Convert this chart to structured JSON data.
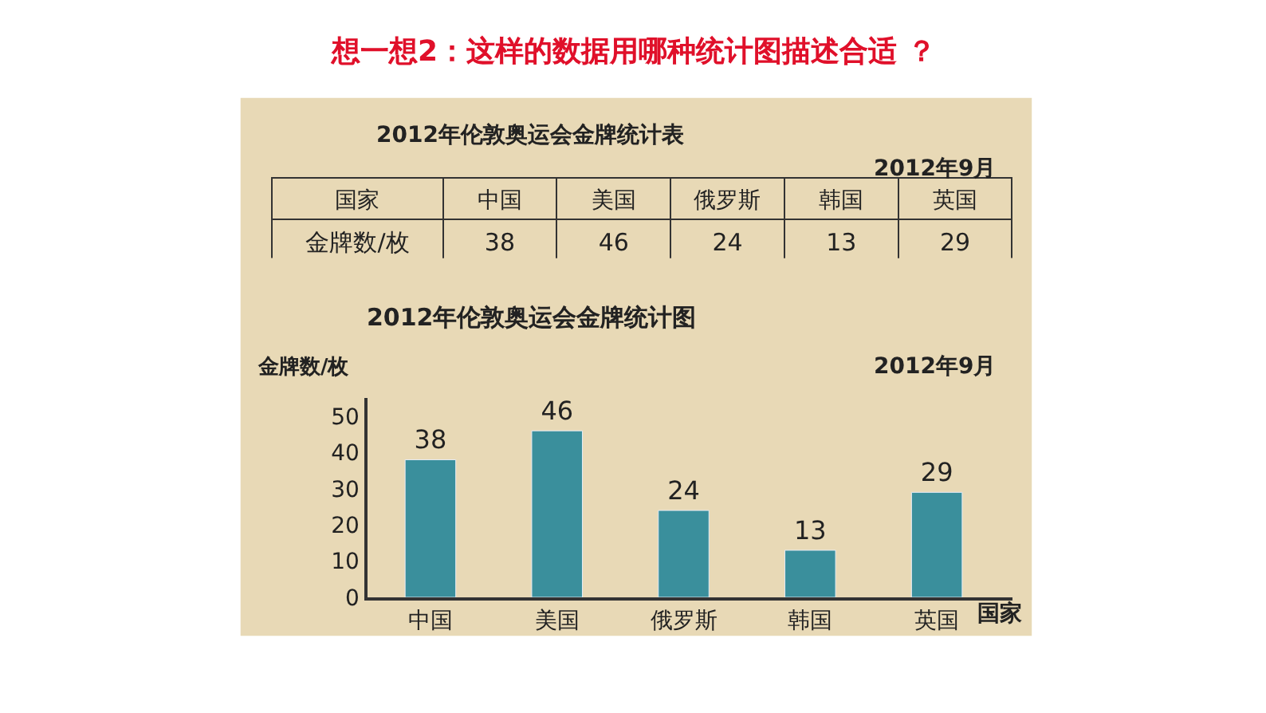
{
  "chart_data": {
    "type": "bar",
    "title": "想一想2：这样的数据用哪种统计图描述合适 ？",
    "subtitle": "2012年伦敦奥运会金牌统计图",
    "xlabel": "国家",
    "ylabel": "金牌数/枚",
    "annotations": [
      "2012年伦敦奥运会金牌统计表",
      "2012年9月",
      "国家",
      "金牌数/枚",
      "2012年9月",
      "38",
      "46",
      "24",
      "13",
      "29"
    ],
    "categories": [
      "中国",
      "美国",
      "俄罗斯",
      "韩国",
      "英国"
    ],
    "values": [
      38,
      46,
      24,
      13,
      29
    ],
    "color": "#3a8f9c",
    "ylim": [
      0,
      55
    ],
    "yticks": [
      0,
      10,
      20,
      30,
      40,
      50
    ],
    "data_labels": true,
    "grid": false,
    "legend": false
  }
}
